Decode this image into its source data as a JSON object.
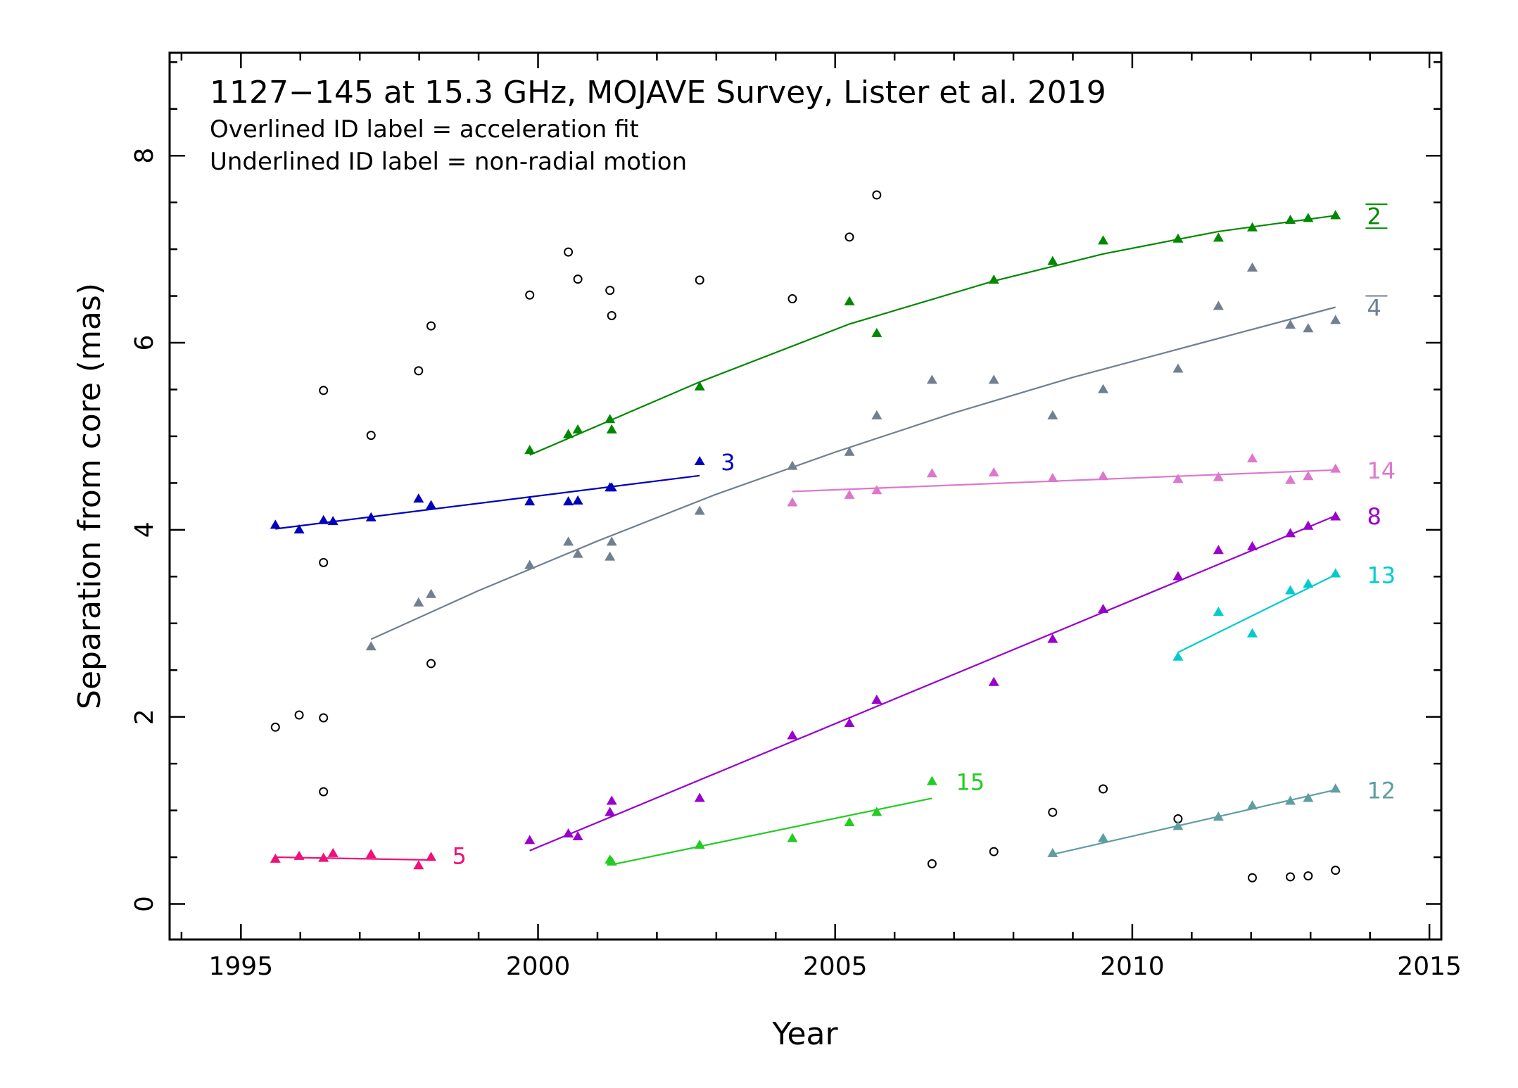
{
  "chart_data": {
    "type": "scatter",
    "title": "1127−145 at 15.3 GHz, MOJAVE Survey, Lister et al. 2019",
    "subtitle_lines": [
      "Overlined ID label = acceleration fit",
      "Underlined ID label = non-radial motion"
    ],
    "xlabel": "Year",
    "ylabel": "Separation from core (mas)",
    "xlim": [
      1993.8,
      2015.2
    ],
    "ylim": [
      -0.38,
      9.1
    ],
    "x_ticks": [
      1995,
      2000,
      2005,
      2010,
      2015
    ],
    "y_ticks": [
      0,
      2,
      4,
      6,
      8
    ],
    "grid": false,
    "unassigned_points": {
      "marker": "open-circle",
      "color": "#000000",
      "points": [
        [
          1995.58,
          1.89
        ],
        [
          1995.98,
          2.02
        ],
        [
          1996.39,
          1.99
        ],
        [
          1996.39,
          1.2
        ],
        [
          1996.39,
          3.65
        ],
        [
          1996.39,
          5.49
        ],
        [
          1997.19,
          5.01
        ],
        [
          1997.99,
          5.7
        ],
        [
          1998.2,
          6.18
        ],
        [
          1998.2,
          2.57
        ],
        [
          1999.86,
          6.51
        ],
        [
          2000.51,
          6.97
        ],
        [
          2000.67,
          6.68
        ],
        [
          2001.21,
          6.56
        ],
        [
          2001.24,
          6.29
        ],
        [
          2002.72,
          6.67
        ],
        [
          2004.28,
          6.47
        ],
        [
          2005.24,
          7.13
        ],
        [
          2005.7,
          7.58
        ],
        [
          2006.63,
          0.43
        ],
        [
          2007.67,
          0.56
        ],
        [
          2008.66,
          0.98
        ],
        [
          2009.51,
          1.23
        ],
        [
          2010.77,
          0.91
        ],
        [
          2012.02,
          0.28
        ],
        [
          2012.66,
          0.29
        ],
        [
          2012.96,
          0.3
        ],
        [
          2013.42,
          0.36
        ]
      ]
    },
    "series": [
      {
        "name": "2",
        "color": "#008800",
        "overlined": true,
        "underlined": true,
        "points": [
          [
            1999.86,
            4.85
          ],
          [
            2000.51,
            5.02
          ],
          [
            2000.67,
            5.07
          ],
          [
            2001.21,
            5.18
          ],
          [
            2001.24,
            5.07
          ],
          [
            2002.72,
            5.53
          ],
          [
            2005.24,
            6.44
          ],
          [
            2005.7,
            6.1
          ],
          [
            2007.67,
            6.67
          ],
          [
            2008.66,
            6.87
          ],
          [
            2009.51,
            7.09
          ],
          [
            2010.77,
            7.11
          ],
          [
            2011.45,
            7.12
          ],
          [
            2012.02,
            7.23
          ],
          [
            2012.66,
            7.31
          ],
          [
            2012.96,
            7.33
          ],
          [
            2013.42,
            7.36
          ]
        ],
        "fit": [
          [
            1999.86,
            4.8
          ],
          [
            2002.72,
            5.58
          ],
          [
            2005.24,
            6.2
          ],
          [
            2007.67,
            6.66
          ],
          [
            2009.51,
            6.95
          ],
          [
            2011.45,
            7.19
          ],
          [
            2013.42,
            7.36
          ]
        ]
      },
      {
        "name": "4",
        "color": "#708090",
        "overlined": true,
        "underlined": false,
        "points": [
          [
            1997.19,
            2.75
          ],
          [
            1997.99,
            3.22
          ],
          [
            1998.2,
            3.31
          ],
          [
            1999.86,
            3.62
          ],
          [
            2000.51,
            3.87
          ],
          [
            2000.67,
            3.74
          ],
          [
            2001.21,
            3.71
          ],
          [
            2001.24,
            3.87
          ],
          [
            2002.72,
            4.2
          ],
          [
            2004.28,
            4.68
          ],
          [
            2005.24,
            4.83
          ],
          [
            2005.7,
            5.22
          ],
          [
            2006.63,
            5.6
          ],
          [
            2007.67,
            5.6
          ],
          [
            2008.66,
            5.22
          ],
          [
            2009.51,
            5.5
          ],
          [
            2010.77,
            5.72
          ],
          [
            2011.45,
            6.39
          ],
          [
            2012.02,
            6.8
          ],
          [
            2012.66,
            6.19
          ],
          [
            2012.96,
            6.15
          ],
          [
            2013.42,
            6.24
          ]
        ],
        "fit": [
          [
            1997.19,
            2.83
          ],
          [
            1999.0,
            3.35
          ],
          [
            2001.0,
            3.88
          ],
          [
            2003.0,
            4.38
          ],
          [
            2005.0,
            4.83
          ],
          [
            2007.0,
            5.25
          ],
          [
            2009.0,
            5.63
          ],
          [
            2011.0,
            5.97
          ],
          [
            2013.42,
            6.38
          ]
        ]
      },
      {
        "name": "3",
        "color": "#0000bb",
        "overlined": false,
        "underlined": false,
        "points": [
          [
            1995.58,
            4.05
          ],
          [
            1995.98,
            4.0
          ],
          [
            1996.39,
            4.1
          ],
          [
            1996.55,
            4.09
          ],
          [
            1997.19,
            4.13
          ],
          [
            1997.99,
            4.33
          ],
          [
            1998.2,
            4.26
          ],
          [
            1999.86,
            4.3
          ],
          [
            2000.51,
            4.3
          ],
          [
            2000.67,
            4.31
          ],
          [
            2001.21,
            4.45
          ],
          [
            2001.24,
            4.45
          ],
          [
            2002.72,
            4.73
          ]
        ],
        "fit": [
          [
            1995.58,
            4.01
          ],
          [
            2002.72,
            4.58
          ]
        ]
      },
      {
        "name": "14",
        "color": "#dd77cc",
        "overlined": false,
        "underlined": false,
        "points": [
          [
            2004.28,
            4.29
          ],
          [
            2005.24,
            4.37
          ],
          [
            2005.7,
            4.42
          ],
          [
            2006.63,
            4.6
          ],
          [
            2007.67,
            4.61
          ],
          [
            2008.66,
            4.55
          ],
          [
            2009.51,
            4.57
          ],
          [
            2010.77,
            4.54
          ],
          [
            2011.45,
            4.56
          ],
          [
            2012.02,
            4.76
          ],
          [
            2012.66,
            4.53
          ],
          [
            2012.96,
            4.57
          ],
          [
            2013.42,
            4.65
          ]
        ],
        "fit": [
          [
            2004.28,
            4.41
          ],
          [
            2013.42,
            4.64
          ]
        ]
      },
      {
        "name": "8",
        "color": "#9900cc",
        "overlined": false,
        "underlined": false,
        "points": [
          [
            1999.86,
            0.68
          ],
          [
            2000.51,
            0.75
          ],
          [
            2000.67,
            0.72
          ],
          [
            2001.21,
            0.98
          ],
          [
            2001.24,
            1.1
          ],
          [
            2002.72,
            1.13
          ],
          [
            2004.28,
            1.8
          ],
          [
            2005.24,
            1.93
          ],
          [
            2005.7,
            2.18
          ],
          [
            2007.67,
            2.37
          ],
          [
            2008.66,
            2.83
          ],
          [
            2009.51,
            3.15
          ],
          [
            2010.77,
            3.5
          ],
          [
            2011.45,
            3.78
          ],
          [
            2012.02,
            3.82
          ],
          [
            2012.66,
            3.96
          ],
          [
            2012.96,
            4.04
          ],
          [
            2013.42,
            4.14
          ]
        ],
        "fit": [
          [
            1999.86,
            0.57
          ],
          [
            2013.42,
            4.15
          ]
        ]
      },
      {
        "name": "13",
        "color": "#00cccc",
        "overlined": false,
        "underlined": false,
        "points": [
          [
            2010.77,
            2.64
          ],
          [
            2011.45,
            3.12
          ],
          [
            2012.02,
            2.89
          ],
          [
            2012.66,
            3.35
          ],
          [
            2012.96,
            3.42
          ],
          [
            2013.42,
            3.53
          ]
        ],
        "fit": [
          [
            2010.77,
            2.69
          ],
          [
            2013.42,
            3.52
          ]
        ]
      },
      {
        "name": "15",
        "color": "#22cc22",
        "overlined": false,
        "underlined": false,
        "points": [
          [
            2001.21,
            0.47
          ],
          [
            2001.24,
            0.45
          ],
          [
            2002.72,
            0.63
          ],
          [
            2004.28,
            0.7
          ],
          [
            2005.24,
            0.87
          ],
          [
            2005.7,
            0.98
          ],
          [
            2006.63,
            1.31
          ]
        ],
        "fit": [
          [
            2001.24,
            0.42
          ],
          [
            2006.63,
            1.13
          ]
        ]
      },
      {
        "name": "12",
        "color": "#5f9ea0",
        "overlined": false,
        "underlined": false,
        "points": [
          [
            2008.66,
            0.54
          ],
          [
            2009.51,
            0.7
          ],
          [
            2010.77,
            0.83
          ],
          [
            2011.45,
            0.93
          ],
          [
            2012.02,
            1.05
          ],
          [
            2012.66,
            1.1
          ],
          [
            2012.96,
            1.13
          ],
          [
            2013.42,
            1.23
          ]
        ],
        "fit": [
          [
            2008.66,
            0.53
          ],
          [
            2013.42,
            1.22
          ]
        ]
      },
      {
        "name": "5",
        "color": "#ee1177",
        "overlined": false,
        "underlined": false,
        "points": [
          [
            1995.58,
            0.48
          ],
          [
            1995.98,
            0.51
          ],
          [
            1996.39,
            0.49
          ],
          [
            1996.55,
            0.54
          ],
          [
            1997.19,
            0.53
          ],
          [
            1997.99,
            0.41
          ],
          [
            1998.2,
            0.5
          ]
        ],
        "fit": [
          [
            1995.58,
            0.5
          ],
          [
            1998.2,
            0.47
          ]
        ]
      }
    ]
  }
}
